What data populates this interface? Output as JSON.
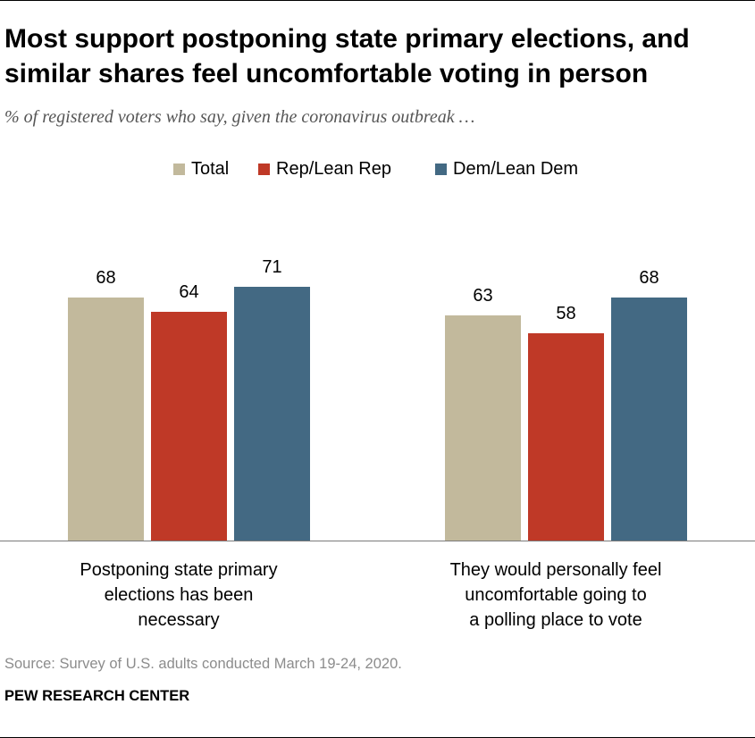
{
  "header": {
    "title": "Most support postponing state primary elections, and similar shares feel uncomfortable voting in person",
    "subtitle": "% of registered voters who say, given the coronavirus outbreak …"
  },
  "colors": {
    "Total": "#c2b99c",
    "Rep/Lean Rep": "#bf3927",
    "Dem/Lean Dem": "#436983"
  },
  "chart_data": {
    "type": "bar",
    "categories": [
      "Postponing state primary elections has been necessary",
      "They would personally feel uncomfortable going to a polling place to vote"
    ],
    "category_lines": [
      [
        "Postponing state primary",
        "elections has been",
        "necessary"
      ],
      [
        "They would personally feel",
        "uncomfortable going to",
        "a polling place to vote"
      ]
    ],
    "series": [
      {
        "name": "Total",
        "values": [
          68,
          63
        ]
      },
      {
        "name": "Rep/Lean Rep",
        "values": [
          64,
          58
        ]
      },
      {
        "name": "Dem/Lean Dem",
        "values": [
          71,
          68
        ]
      }
    ],
    "ylim": [
      0,
      100
    ],
    "grid": false,
    "legend_position": "top-center",
    "data_labels": true
  },
  "footer": {
    "source": "Source: Survey of U.S. adults conducted March 19-24, 2020.",
    "credit": "PEW RESEARCH CENTER"
  }
}
